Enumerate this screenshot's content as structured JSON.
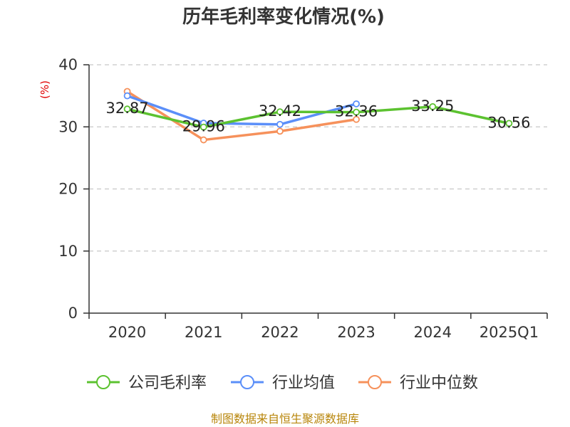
{
  "chart_data": {
    "type": "line",
    "title": "历年毛利率变化情况(%)",
    "ylabel": "(%)",
    "xlabel": "",
    "categories": [
      "2020",
      "2021",
      "2022",
      "2023",
      "2024",
      "2025Q1"
    ],
    "ylim": [
      0,
      40
    ],
    "yticks": [
      0,
      10,
      20,
      30,
      40
    ],
    "grid": true,
    "legend_position": "bottom",
    "series": [
      {
        "name": "公司毛利率",
        "values": [
          32.87,
          29.96,
          32.42,
          32.36,
          33.25,
          30.56
        ],
        "color": "#5cc230",
        "show_labels": true
      },
      {
        "name": "行业均值",
        "values": [
          35.0,
          30.6,
          30.4,
          33.7,
          null,
          null
        ],
        "color": "#5b8ff9",
        "show_labels": false
      },
      {
        "name": "行业中位数",
        "values": [
          35.7,
          27.9,
          29.3,
          31.2,
          null,
          null
        ],
        "color": "#f6915b",
        "show_labels": false
      }
    ],
    "data_labels": [
      "32.87",
      "29.96",
      "32.42",
      "32.36",
      "33.25",
      "30.56"
    ]
  },
  "footer": {
    "source_text": "制图数据来自恒生聚源数据库"
  }
}
